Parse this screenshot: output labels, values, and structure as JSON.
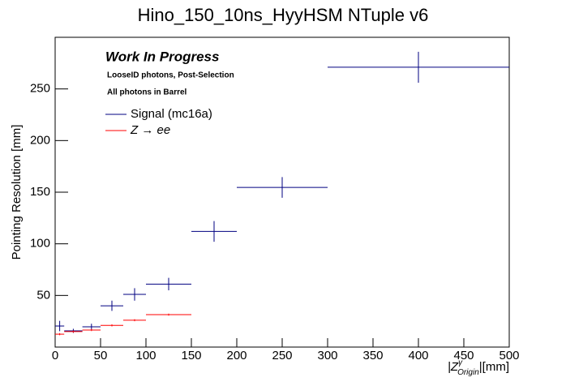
{
  "chart_data": {
    "type": "errorbar",
    "title": "Hino_150_10ns_HyyHSM NTuple v6",
    "ylabel": "Pointing Resolution [mm]",
    "xlabel": {
      "main": "|Z",
      "sup": "γ",
      "sub": "Origin",
      "tail": "|[mm]"
    },
    "annotations": [
      "Work In Progress",
      "LooseID photons, Post-Selection",
      "All photons in Barrel"
    ],
    "legend": "top-left",
    "xlim": [
      0,
      500
    ],
    "xticks": [
      0,
      50,
      100,
      150,
      200,
      250,
      300,
      350,
      400,
      450,
      500
    ],
    "ylim": [
      0,
      300
    ],
    "yticks": [
      50,
      100,
      150,
      200,
      250
    ],
    "series": [
      {
        "name": "Signal (mc16a)",
        "color": "#000080",
        "x": [
          5,
          20,
          40,
          62.5,
          87.5,
          125,
          175,
          250,
          400
        ],
        "xerr": [
          5,
          10,
          10,
          12.5,
          12.5,
          25,
          25,
          50,
          100
        ],
        "values": [
          20.4,
          15.7,
          19.6,
          40,
          51,
          61,
          112,
          154.6,
          271
        ],
        "errors": [
          5,
          2,
          3,
          5,
          6,
          6,
          10,
          10,
          15
        ]
      },
      {
        "name": "Z → ee",
        "color": "#ff0000",
        "x": [
          5,
          20,
          40,
          62.5,
          87.5,
          125
        ],
        "xerr": [
          5,
          10,
          10,
          12.5,
          12.5,
          25
        ],
        "values": [
          12.5,
          15,
          16.5,
          21,
          26,
          31.4
        ],
        "errors": [
          1,
          1,
          1,
          1,
          1,
          1
        ]
      }
    ]
  }
}
